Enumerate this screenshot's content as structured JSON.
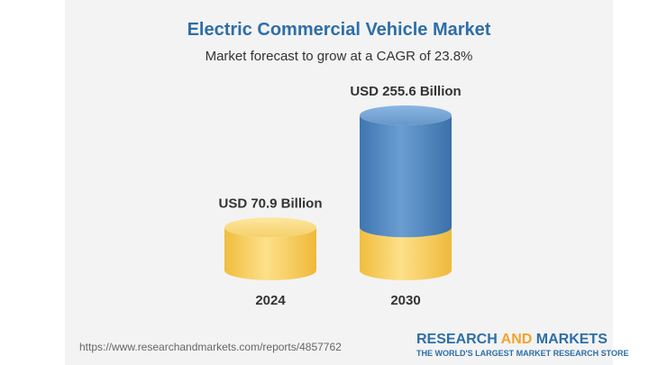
{
  "chart_data": {
    "type": "bar",
    "title": "Electric Commercial Vehicle Market",
    "subtitle": "Market forecast to grow at a CAGR of 23.8%",
    "categories": [
      "2024",
      "2030"
    ],
    "values": [
      70.9,
      255.6
    ],
    "value_labels": [
      "USD 70.9 Billion",
      "USD 255.6 Billion"
    ],
    "unit": "USD Billion",
    "xlabel": "",
    "ylabel": "",
    "ylim": [
      0,
      255.6
    ]
  },
  "footer": {
    "url": "https://www.researchandmarkets.com/reports/4857762",
    "brand_part1": "RESEARCH ",
    "brand_part2": "AND",
    "brand_part3": " MARKETS",
    "tagline": "THE WORLD'S LARGEST MARKET RESEARCH STORE"
  },
  "colors": {
    "title": "#2e6ea6",
    "base_cylinder": "#f7cd5a",
    "growth_cylinder": "#4f86c0",
    "brand_accent": "#f2a42a"
  }
}
